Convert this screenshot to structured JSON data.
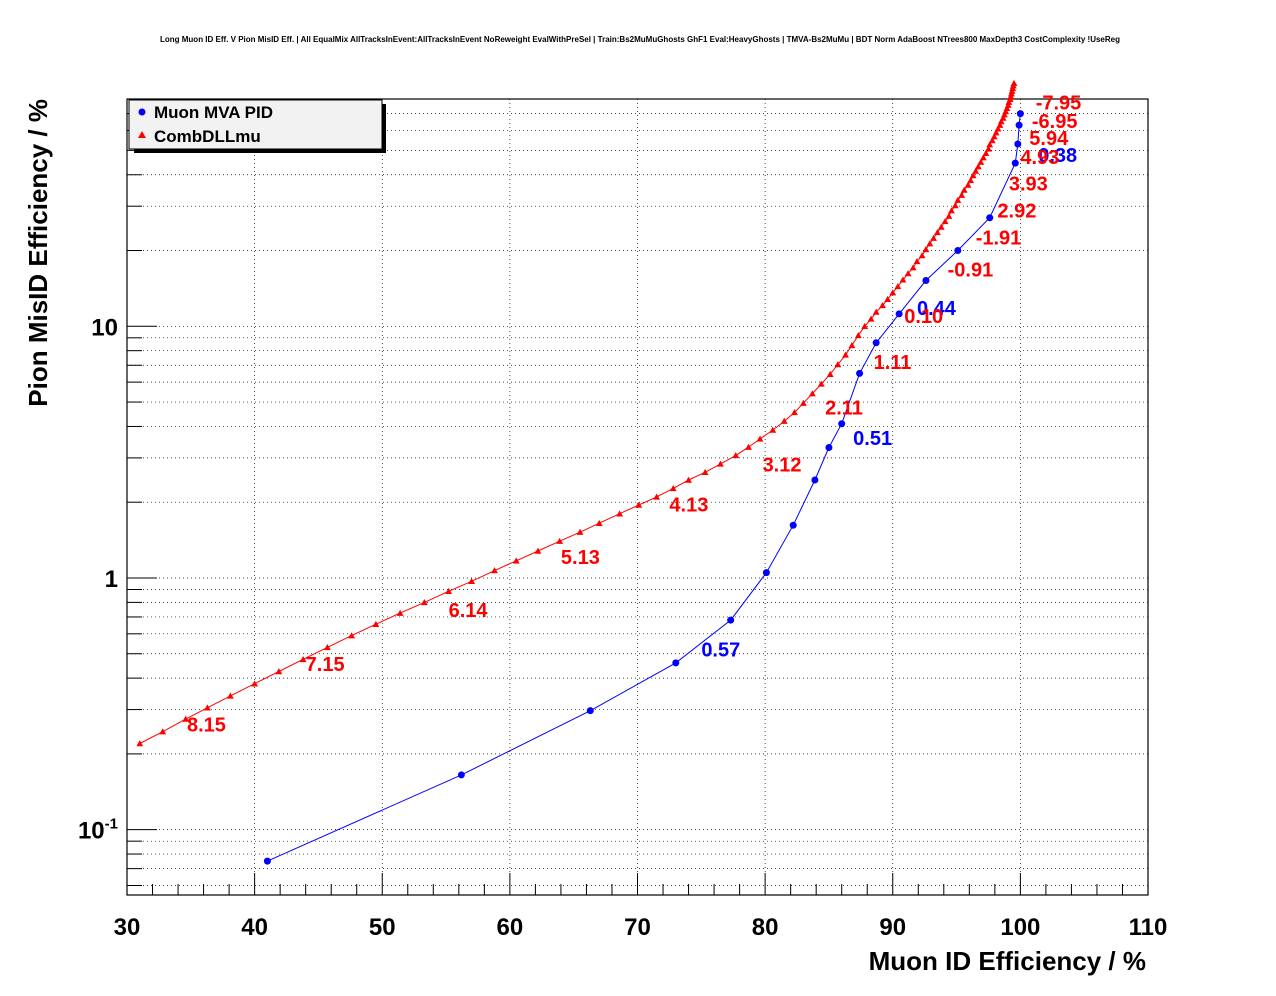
{
  "chart_data": {
    "type": "line",
    "title": "Long Muon ID Eff. V Pion MisID Eff. | All EqualMix AllTracksInEvent:AllTracksInEvent NoReweight EvalWithPreSel | Train:Bs2MuMuGhosts GhF1 Eval:HeavyGhosts | TMVA-Bs2MuMu | BDT Norm AdaBoost NTrees800 MaxDepth3 CostComplexity !UseReg",
    "xlabel": "Muon ID Efficiency / %",
    "ylabel": "Pion MisID Efficiency / %",
    "xlim": [
      30,
      110
    ],
    "ylim": [
      0.055,
      80
    ],
    "yscale": "log",
    "grid": true,
    "legend_position": "top-left",
    "x_ticks": [
      "30",
      "40",
      "50",
      "60",
      "70",
      "80",
      "90",
      "100",
      "110"
    ],
    "y_ticks": [
      {
        "value": 0.1,
        "base": "10",
        "exp": "-1"
      },
      {
        "value": 1,
        "base": "1",
        "exp": ""
      },
      {
        "value": 10,
        "base": "10",
        "exp": ""
      }
    ],
    "series": [
      {
        "name": "Muon MVA PID",
        "color": "#0000ff",
        "marker": "circle",
        "x": [
          41.0,
          56.2,
          66.3,
          73.0,
          77.3,
          80.1,
          82.2,
          83.9,
          85.0,
          86.0,
          87.4,
          88.7,
          90.5,
          92.6,
          95.1,
          97.6,
          99.6,
          99.8,
          99.9,
          100.0
        ],
        "y": [
          0.075,
          0.165,
          0.297,
          0.46,
          0.68,
          1.05,
          1.62,
          2.45,
          3.3,
          4.1,
          6.5,
          8.6,
          11.2,
          15.2,
          20.0,
          27.0,
          44.5,
          53.0,
          63.0,
          70.0
        ],
        "labels": [
          {
            "text": "0.57",
            "x": 75.0,
            "y": 0.52
          },
          {
            "text": "0.51",
            "x": 86.9,
            "y": 3.6
          },
          {
            "text": "0.44",
            "x": 91.9,
            "y": 11.8
          },
          {
            "text": "0.38",
            "x": 101.4,
            "y": 48.0
          }
        ]
      },
      {
        "name": "CombDLLmu",
        "color": "#ff0000",
        "marker": "triangle",
        "x": [
          31.0,
          32.8,
          34.6,
          36.3,
          38.1,
          40.0,
          41.9,
          43.8,
          45.7,
          47.6,
          49.5,
          51.4,
          53.3,
          55.2,
          57.0,
          58.8,
          60.5,
          62.2,
          63.9,
          65.5,
          67.0,
          68.6,
          70.1,
          71.5,
          72.8,
          74.0,
          75.3,
          76.5,
          77.7,
          78.7,
          79.6,
          80.6,
          81.5,
          82.3,
          83.0,
          83.7,
          84.4,
          85.1,
          85.7,
          86.3,
          86.8,
          87.3,
          87.8,
          88.3,
          88.7,
          89.2,
          89.6,
          90.0,
          90.4,
          90.8,
          91.2,
          91.6,
          91.9,
          92.3,
          92.6,
          92.9,
          93.2,
          93.5,
          93.8,
          94.1,
          94.4,
          94.6,
          94.9,
          95.1,
          95.4,
          95.6,
          95.9,
          96.1,
          96.3,
          96.5,
          96.7,
          96.9,
          97.1,
          97.3,
          97.5,
          97.6,
          97.8,
          97.95,
          98.1,
          98.25,
          98.4,
          98.5,
          98.65,
          98.75,
          98.85,
          98.95,
          99.05,
          99.1,
          99.2,
          99.25,
          99.3,
          99.35,
          99.4,
          99.45,
          99.5
        ],
        "y": [
          0.22,
          0.245,
          0.275,
          0.305,
          0.34,
          0.38,
          0.425,
          0.475,
          0.53,
          0.59,
          0.655,
          0.725,
          0.8,
          0.885,
          0.97,
          1.07,
          1.17,
          1.28,
          1.4,
          1.52,
          1.65,
          1.8,
          1.95,
          2.1,
          2.27,
          2.45,
          2.63,
          2.84,
          3.07,
          3.31,
          3.57,
          3.87,
          4.2,
          4.55,
          4.95,
          5.4,
          5.9,
          6.45,
          7.05,
          7.7,
          8.4,
          9.2,
          10.0,
          10.7,
          11.4,
          12.1,
          12.8,
          13.6,
          14.4,
          15.3,
          16.2,
          17.1,
          18.1,
          19.1,
          20.2,
          21.3,
          22.4,
          23.6,
          24.8,
          26.1,
          27.4,
          28.8,
          30.2,
          31.7,
          33.2,
          34.8,
          36.4,
          38.0,
          39.7,
          41.4,
          43.1,
          44.9,
          46.8,
          48.7,
          50.7,
          52.7,
          54.7,
          56.7,
          58.8,
          60.9,
          63.0,
          65.1,
          67.2,
          69.3,
          71.4,
          73.5,
          75.6,
          77.7,
          79.8,
          81.9,
          84.0,
          86.1,
          88.2,
          90.3,
          92.4
        ],
        "labels": [
          {
            "text": "8.15",
            "x": 34.7,
            "y": 0.262
          },
          {
            "text": "7.15",
            "x": 44.0,
            "y": 0.455
          },
          {
            "text": "6.14",
            "x": 55.2,
            "y": 0.745
          },
          {
            "text": "5.13",
            "x": 64.0,
            "y": 1.21
          },
          {
            "text": "4.13",
            "x": 72.5,
            "y": 1.96
          },
          {
            "text": "3.12",
            "x": 79.8,
            "y": 2.83
          },
          {
            "text": "2.11",
            "x": 84.7,
            "y": 4.75
          },
          {
            "text": "1.11",
            "x": 88.5,
            "y": 7.2
          },
          {
            "text": "0.10",
            "x": 90.9,
            "y": 11.0
          },
          {
            "text": "-0.91",
            "x": 94.3,
            "y": 16.8
          },
          {
            "text": "-1.91",
            "x": 96.5,
            "y": 22.5
          },
          {
            "text": "2.92",
            "x": 98.2,
            "y": 28.8
          },
          {
            "text": "3.93",
            "x": 99.1,
            "y": 37.0
          },
          {
            "text": "4.93",
            "x": 100.0,
            "y": 47.0
          },
          {
            "text": "5.94",
            "x": 100.7,
            "y": 56.0
          },
          {
            "text": "-6.95",
            "x": 100.9,
            "y": 65.5
          },
          {
            "text": "-7.95",
            "x": 101.2,
            "y": 77.5
          }
        ]
      }
    ]
  }
}
